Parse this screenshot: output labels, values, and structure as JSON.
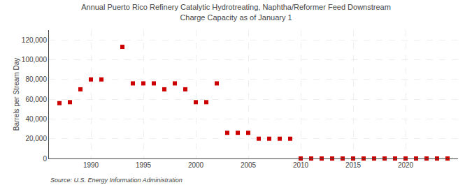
{
  "chart_data": {
    "type": "scatter",
    "title": "Annual Puerto Rico Refinery Catalytic Hydrotreating, Naphtha/Reformer Feed Downstream\nCharge Capacity as of January 1",
    "ylabel": "Barrels per Stream Day",
    "annotations": [
      "Source: U.S. Energy Information Administration"
    ],
    "x": [
      1987,
      1988,
      1989,
      1990,
      1991,
      1993,
      1994,
      1995,
      1996,
      1997,
      1998,
      1999,
      2000,
      2001,
      2002,
      2003,
      2004,
      2005,
      2006,
      2007,
      2008,
      2009,
      2010,
      2011,
      2012,
      2013,
      2014,
      2015,
      2016,
      2017,
      2018,
      2019,
      2020,
      2021,
      2022,
      2023,
      2024
    ],
    "values": [
      56000,
      57000,
      70000,
      80000,
      80000,
      113000,
      76000,
      76000,
      76000,
      70000,
      76000,
      70000,
      57000,
      57000,
      76000,
      26000,
      26000,
      26000,
      20000,
      20000,
      20000,
      20000,
      0,
      0,
      0,
      0,
      0,
      0,
      0,
      0,
      0,
      0,
      0,
      0,
      0,
      0,
      0
    ],
    "color": "#cc0000",
    "marker": "square",
    "xlim": [
      1986,
      2025
    ],
    "xticks": [
      1990,
      1995,
      2000,
      2005,
      2010,
      2015,
      2020
    ],
    "ylim": [
      0,
      130000
    ],
    "yticks": [
      0,
      {
        "value": 20000,
        "label": "20,000"
      },
      {
        "value": 40000,
        "label": "40,000"
      },
      {
        "value": 60000,
        "label": "60,000"
      },
      {
        "value": 80000,
        "label": "80,000"
      },
      {
        "value": 100000,
        "label": "100,000"
      },
      {
        "value": 120000,
        "label": "120,000"
      }
    ],
    "grid": true
  }
}
